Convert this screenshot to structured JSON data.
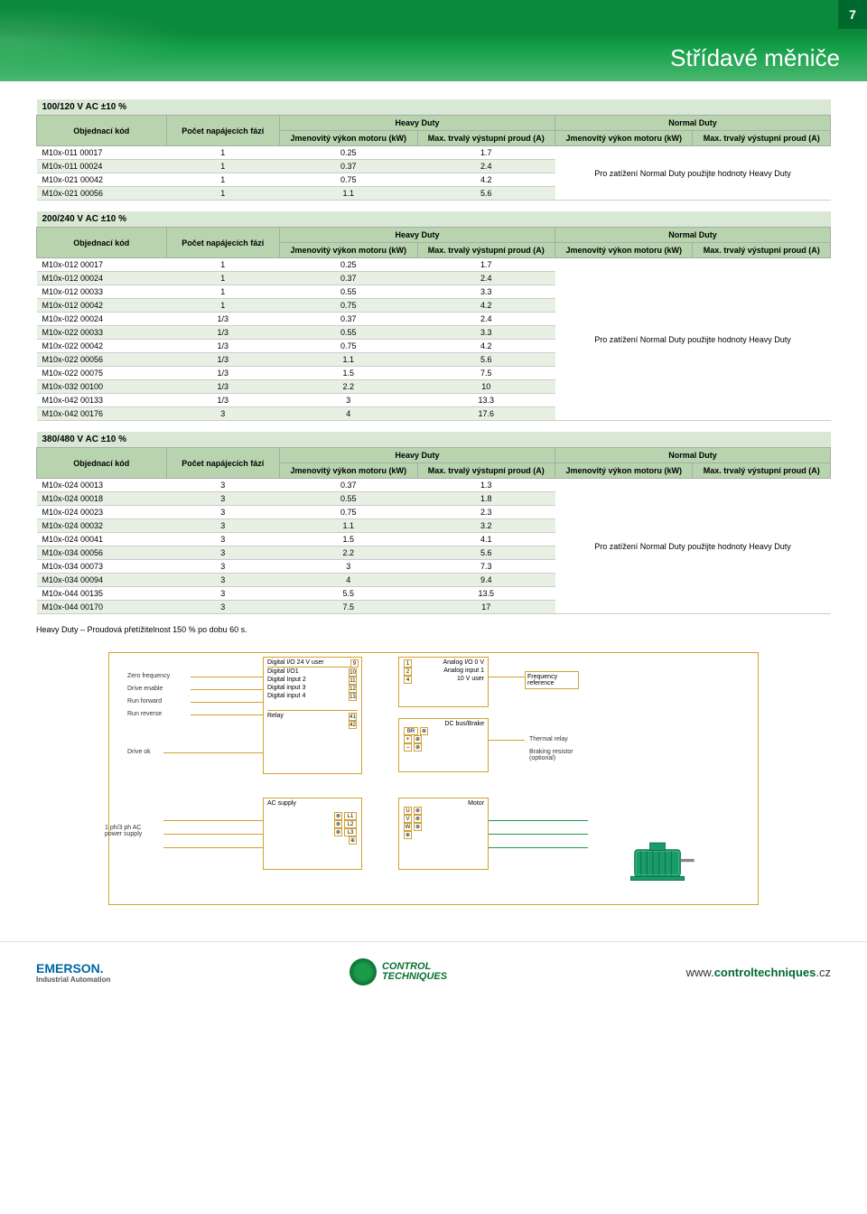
{
  "page": {
    "number": "7",
    "title": "Střídavé měniče"
  },
  "columns": {
    "order": "Objednací kód",
    "phases": "Počet napájecích fází",
    "heavy_group": "Heavy Duty",
    "normal_group": "Normal Duty",
    "power": "Jmenovitý výkon motoru (kW)",
    "current": "Max. trvalý výstupní proud (A)"
  },
  "note": "Pro zatížení Normal Duty použijte hodnoty Heavy Duty",
  "table1": {
    "title": "100/120 V AC ±10 %",
    "rows": [
      [
        "M10x-011 00017",
        "1",
        "0.25",
        "1.7"
      ],
      [
        "M10x-011 00024",
        "1",
        "0.37",
        "2.4"
      ],
      [
        "M10x-021 00042",
        "1",
        "0.75",
        "4.2"
      ],
      [
        "M10x-021 00056",
        "1",
        "1.1",
        "5.6"
      ]
    ]
  },
  "table2": {
    "title": "200/240 V AC ±10 %",
    "rows": [
      [
        "M10x-012 00017",
        "1",
        "0.25",
        "1.7"
      ],
      [
        "M10x-012 00024",
        "1",
        "0.37",
        "2.4"
      ],
      [
        "M10x-012 00033",
        "1",
        "0.55",
        "3.3"
      ],
      [
        "M10x-012 00042",
        "1",
        "0.75",
        "4.2"
      ],
      [
        "M10x-022 00024",
        "1/3",
        "0.37",
        "2.4"
      ],
      [
        "M10x-022 00033",
        "1/3",
        "0.55",
        "3.3"
      ],
      [
        "M10x-022 00042",
        "1/3",
        "0.75",
        "4.2"
      ],
      [
        "M10x-022 00056",
        "1/3",
        "1.1",
        "5.6"
      ],
      [
        "M10x-022 00075",
        "1/3",
        "1.5",
        "7.5"
      ],
      [
        "M10x-032 00100",
        "1/3",
        "2.2",
        "10"
      ],
      [
        "M10x-042 00133",
        "1/3",
        "3",
        "13.3"
      ],
      [
        "M10x-042 00176",
        "3",
        "4",
        "17.6"
      ]
    ]
  },
  "table3": {
    "title": "380/480 V AC ±10 %",
    "rows": [
      [
        "M10x-024 00013",
        "3",
        "0.37",
        "1.3"
      ],
      [
        "M10x-024 00018",
        "3",
        "0.55",
        "1.8"
      ],
      [
        "M10x-024 00023",
        "3",
        "0.75",
        "2.3"
      ],
      [
        "M10x-024 00032",
        "3",
        "1.1",
        "3.2"
      ],
      [
        "M10x-024 00041",
        "3",
        "1.5",
        "4.1"
      ],
      [
        "M10x-034 00056",
        "3",
        "2.2",
        "5.6"
      ],
      [
        "M10x-034 00073",
        "3",
        "3",
        "7.3"
      ],
      [
        "M10x-034 00094",
        "3",
        "4",
        "9.4"
      ],
      [
        "M10x-044 00135",
        "3",
        "5.5",
        "13.5"
      ],
      [
        "M10x-044 00170",
        "3",
        "7.5",
        "17"
      ]
    ]
  },
  "footnote": "Heavy Duty – Proudová přetížitelnost 150 % po dobu 60 s.",
  "diagram": {
    "left_labels": [
      "Zero frequency",
      "Drive enable",
      "Run forward",
      "Run reverse"
    ],
    "drive_ok": "Drive ok",
    "digital_header": "Digital I/O 24 V user",
    "digital_lines": [
      "Digital I/O1",
      "Digital Input 2",
      "Digital input 3",
      "Digital input 4"
    ],
    "digital_pins": [
      "9",
      "10",
      "11",
      "12",
      "13"
    ],
    "relay": "Relay",
    "relay_pins": [
      "41",
      "42"
    ],
    "analog_header": "Analog I/O 0 V",
    "analog_lines": [
      "Analog input 1",
      "10 V user"
    ],
    "analog_pins": [
      "1",
      "2",
      "4"
    ],
    "freq_ref": "Frequency reference",
    "dc_bus": "DC bus/Brake",
    "dc_terms": [
      "BR",
      "+",
      "–"
    ],
    "thermal": "Thermal relay",
    "braking": "Braking resistor (optional)",
    "ac_supply": "AC supply",
    "ac_terms": [
      "L1",
      "L2",
      "L3"
    ],
    "motor_lbl": "Motor",
    "motor_terms": [
      "U",
      "V",
      "W"
    ],
    "power_supply": "1 ph/3 ph AC power supply"
  },
  "footer": {
    "emerson": "EMERSON.",
    "emerson_sub": "Industrial Automation",
    "ct_line1": "CONTROL",
    "ct_line2": "TECHNIQUES",
    "url_prefix": "www.",
    "url_main": "controltechniques",
    "url_suffix": ".cz"
  }
}
